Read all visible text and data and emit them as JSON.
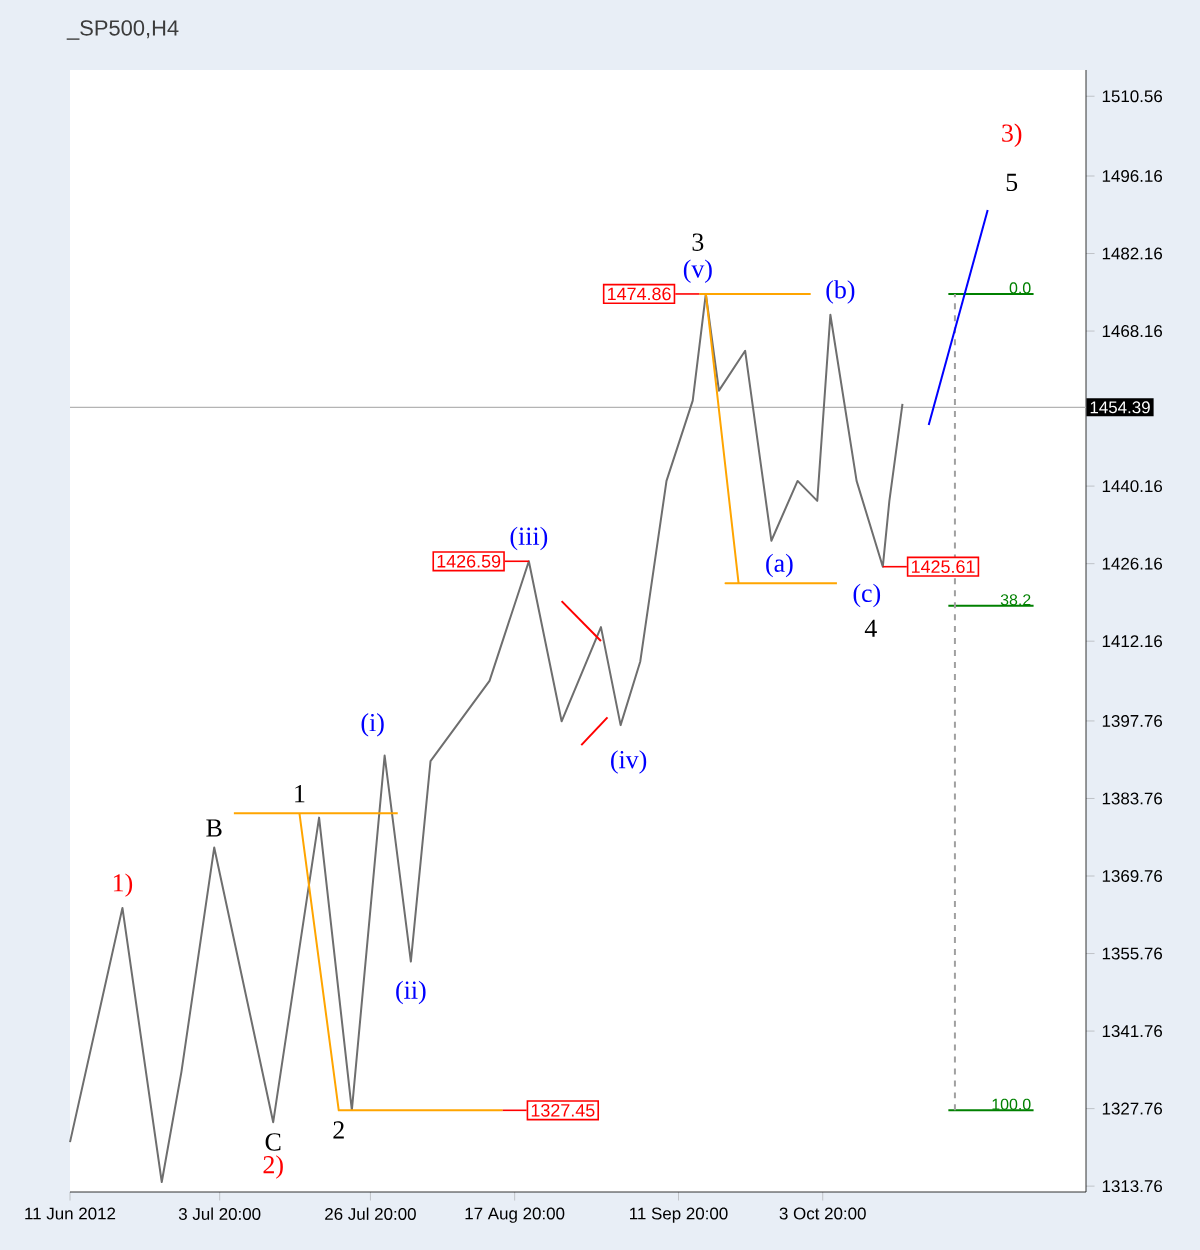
{
  "chart_data": {
    "type": "line",
    "title": "_SP500,H4",
    "xlim": [
      "2012-06-11",
      "2012-11-13"
    ],
    "ylim": [
      1312.7,
      1515.3
    ],
    "xticks": [
      {
        "value": "2012-06-11",
        "label": "11 Jun 2012"
      },
      {
        "value": "2012-07-03T20:00",
        "label": "3 Jul 20:00"
      },
      {
        "value": "2012-07-26T20:00",
        "label": "26 Jul 20:00"
      },
      {
        "value": "2012-08-17T20:00",
        "label": "17 Aug 20:00"
      },
      {
        "value": "2012-09-11T20:00",
        "label": "11 Sep 20:00"
      },
      {
        "value": "2012-10-03T20:00",
        "label": "3 Oct 20:00"
      }
    ],
    "yticks": [
      1313.76,
      1327.76,
      1341.76,
      1355.76,
      1369.76,
      1383.76,
      1397.76,
      1412.16,
      1426.16,
      1440.16,
      1468.16,
      1482.16,
      1496.16,
      1510.56
    ],
    "grid": false,
    "series": [
      {
        "color": "#6e6e6e",
        "x": [
          "2012-06-11",
          "2012-06-19",
          "2012-06-25",
          "2012-06-28",
          "2012-07-03",
          "2012-07-12",
          "2012-07-19",
          "2012-07-24",
          "2012-07-29",
          "2012-08-02",
          "2012-08-05",
          "2012-08-14",
          "2012-08-20",
          "2012-08-25",
          "2012-08-31",
          "2012-09-03",
          "2012-09-06",
          "2012-09-10",
          "2012-09-14",
          "2012-09-16",
          "2012-09-18",
          "2012-09-22",
          "2012-09-26",
          "2012-09-30",
          "2012-10-03",
          "2012-10-05",
          "2012-10-09",
          "2012-10-13",
          "2012-10-14",
          "2012-10-16"
        ],
        "values": [
          1321.7,
          1364.0,
          1314.5,
          1334.4,
          1374.9,
          1325.3,
          1380.3,
          1327.5,
          1391.5,
          1354.3,
          1390.5,
          1405.0,
          1426.59,
          1397.7,
          1414.7,
          1397.0,
          1408.5,
          1441.1,
          1455.6,
          1474.86,
          1457.4,
          1464.6,
          1430.3,
          1441.1,
          1437.5,
          1471.1,
          1441.1,
          1425.61,
          1437.5,
          1455.0
        ]
      },
      {
        "color": "#ffa500",
        "x": [
          "2012-09-15",
          "2012-10-02"
        ],
        "values": [
          1474.86,
          1474.86
        ]
      },
      {
        "color": "#ffa500",
        "x": [
          "2012-09-16",
          "2012-09-21",
          "2012-09-19",
          "2012-10-06"
        ],
        "values": [
          1474.86,
          1422.6,
          1422.6,
          1422.6
        ]
      },
      {
        "color": "#ffa500",
        "x": [
          "2012-07-06",
          "2012-07-31"
        ],
        "values": [
          1381.1,
          1381.1
        ]
      },
      {
        "color": "#ffa500",
        "x": [
          "2012-07-16",
          "2012-07-22",
          "2012-08-16"
        ],
        "values": [
          1381.1,
          1327.45,
          1327.45
        ]
      },
      {
        "color": "#ff0000",
        "x": [
          "2012-08-25",
          "2012-08-31"
        ],
        "values": [
          1419.4,
          1412.2
        ]
      },
      {
        "color": "#ff0000",
        "x": [
          "2012-08-28",
          "2012-09-01"
        ],
        "values": [
          1393.4,
          1398.4
        ]
      },
      {
        "color": "#008000",
        "x": [
          "2012-10-23",
          "2012-11-05"
        ],
        "values": [
          1474.86,
          1474.86
        ]
      },
      {
        "color": "#008000",
        "x": [
          "2012-10-23",
          "2012-11-05"
        ],
        "values": [
          1418.55,
          1418.55
        ]
      },
      {
        "color": "#008000",
        "x": [
          "2012-10-23",
          "2012-11-05"
        ],
        "values": [
          1327.45,
          1327.45
        ]
      },
      {
        "color": "#a0a0a0",
        "line_style": "dashed",
        "x": [
          "2012-10-24",
          "2012-10-24"
        ],
        "values": [
          1327.45,
          1474.86
        ]
      },
      {
        "color": "#0000ff",
        "x": [
          "2012-10-20",
          "2012-10-29"
        ],
        "values": [
          1451.2,
          1490.0
        ]
      }
    ],
    "ref_lines": [
      {
        "axis": "y",
        "value": 1454.39,
        "label": "1454.39",
        "color": "#b4b4b4"
      }
    ],
    "annotations": [
      {
        "text": "1)",
        "x": "2012-06-19",
        "y": 1364.0
      },
      {
        "text": "B",
        "x": "2012-07-03",
        "y": 1374.9
      },
      {
        "text": "C",
        "x": "2012-07-12",
        "y": 1325.3
      },
      {
        "text": "2)",
        "x": "2012-07-12",
        "y": 1325.3
      },
      {
        "text": "1",
        "x": "2012-07-16",
        "y": 1381.1
      },
      {
        "text": "2",
        "x": "2012-07-22",
        "y": 1327.45
      },
      {
        "text": "(i)",
        "x": "2012-07-29",
        "y": 1391.5
      },
      {
        "text": "(ii)",
        "x": "2012-08-02",
        "y": 1354.3
      },
      {
        "text": "(iii)",
        "x": "2012-08-20",
        "y": 1426.59
      },
      {
        "text": "(iv)",
        "x": "2012-09-03",
        "y": 1397.0
      },
      {
        "text": "(v)",
        "x": "2012-09-16",
        "y": 1474.86
      },
      {
        "text": "3",
        "x": "2012-09-16",
        "y": 1474.86
      },
      {
        "text": "(a)",
        "x": "2012-09-26",
        "y": 1430.3
      },
      {
        "text": "(b)",
        "x": "2012-10-05",
        "y": 1471.1
      },
      {
        "text": "(c)",
        "x": "2012-10-13",
        "y": 1425.61
      },
      {
        "text": "4",
        "x": "2012-10-13",
        "y": 1425.61
      },
      {
        "text": "5",
        "x": "2012-10-29",
        "y": 1490.0
      },
      {
        "text": "3)",
        "x": "2012-10-29",
        "y": 1490.0
      },
      {
        "text": "1474.86",
        "x": "2012-09-15",
        "y": 1474.86
      },
      {
        "text": "1426.59",
        "x": "2012-08-20",
        "y": 1426.59
      },
      {
        "text": "1425.61",
        "x": "2012-10-13",
        "y": 1425.61
      },
      {
        "text": "1327.45",
        "x": "2012-08-16",
        "y": 1327.45
      },
      {
        "text": "0.0",
        "x": "2012-11-05",
        "y": 1474.86
      },
      {
        "text": "38.2",
        "x": "2012-11-05",
        "y": 1418.55
      },
      {
        "text": "100.0",
        "x": "2012-11-05",
        "y": 1327.45
      }
    ]
  }
}
